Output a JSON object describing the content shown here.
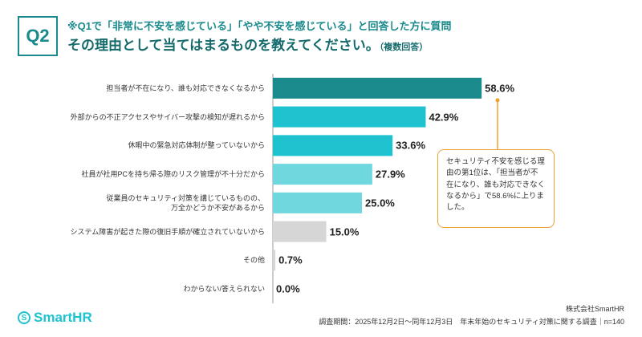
{
  "chart_data": {
    "type": "bar",
    "badge": "Q2",
    "question": "※Q1で「非常に不安を感じている」「やや不安を感じている」と回答した方に質問",
    "title": "その理由として当てはまるものを教えてください。",
    "title_note": "（複数回答）",
    "categories": [
      "担当者が不在になり、誰も対応できなくなるから",
      "外部からの不正アクセスやサイバー攻撃の検知が遅れるから",
      "休暇中の緊急対応体制が整っていないから",
      "社員が社用PCを持ち帰る際のリスク管理が不十分だから",
      "従業員のセキュリティ対策を講じているものの、\n万全かどうか不安があるから",
      "システム障害が起きた際の復旧手順が確立されていないから",
      "その他",
      "わからない/答えられない"
    ],
    "values": [
      58.6,
      42.9,
      33.6,
      27.9,
      25.0,
      15.0,
      0.7,
      0.0
    ],
    "value_labels": [
      "58.6%",
      "42.9%",
      "33.6%",
      "27.9%",
      "25.0%",
      "15.0%",
      "0.7%",
      "0.0%"
    ],
    "colors": [
      "#1a8a8c",
      "#1ec3cf",
      "#1ec3cf",
      "#6fd8de",
      "#6fd8de",
      "#d6d6d6",
      "#d6d6d6",
      "#d6d6d6"
    ],
    "xlim": [
      0,
      100
    ],
    "annotation": "セキュリティ不安を感じる理由の第1位は、「担当者が不在になり、誰も対応できなくなるから」で58.6%に上りました。",
    "annotation_color": "#f0a030"
  },
  "footer": {
    "logo": "SmartHR",
    "company": "株式会社SmartHR",
    "survey": "調査期間：2025年12月2日〜同年12月3日　年末年始のセキュリティ対策に関する調査｜n=140"
  }
}
